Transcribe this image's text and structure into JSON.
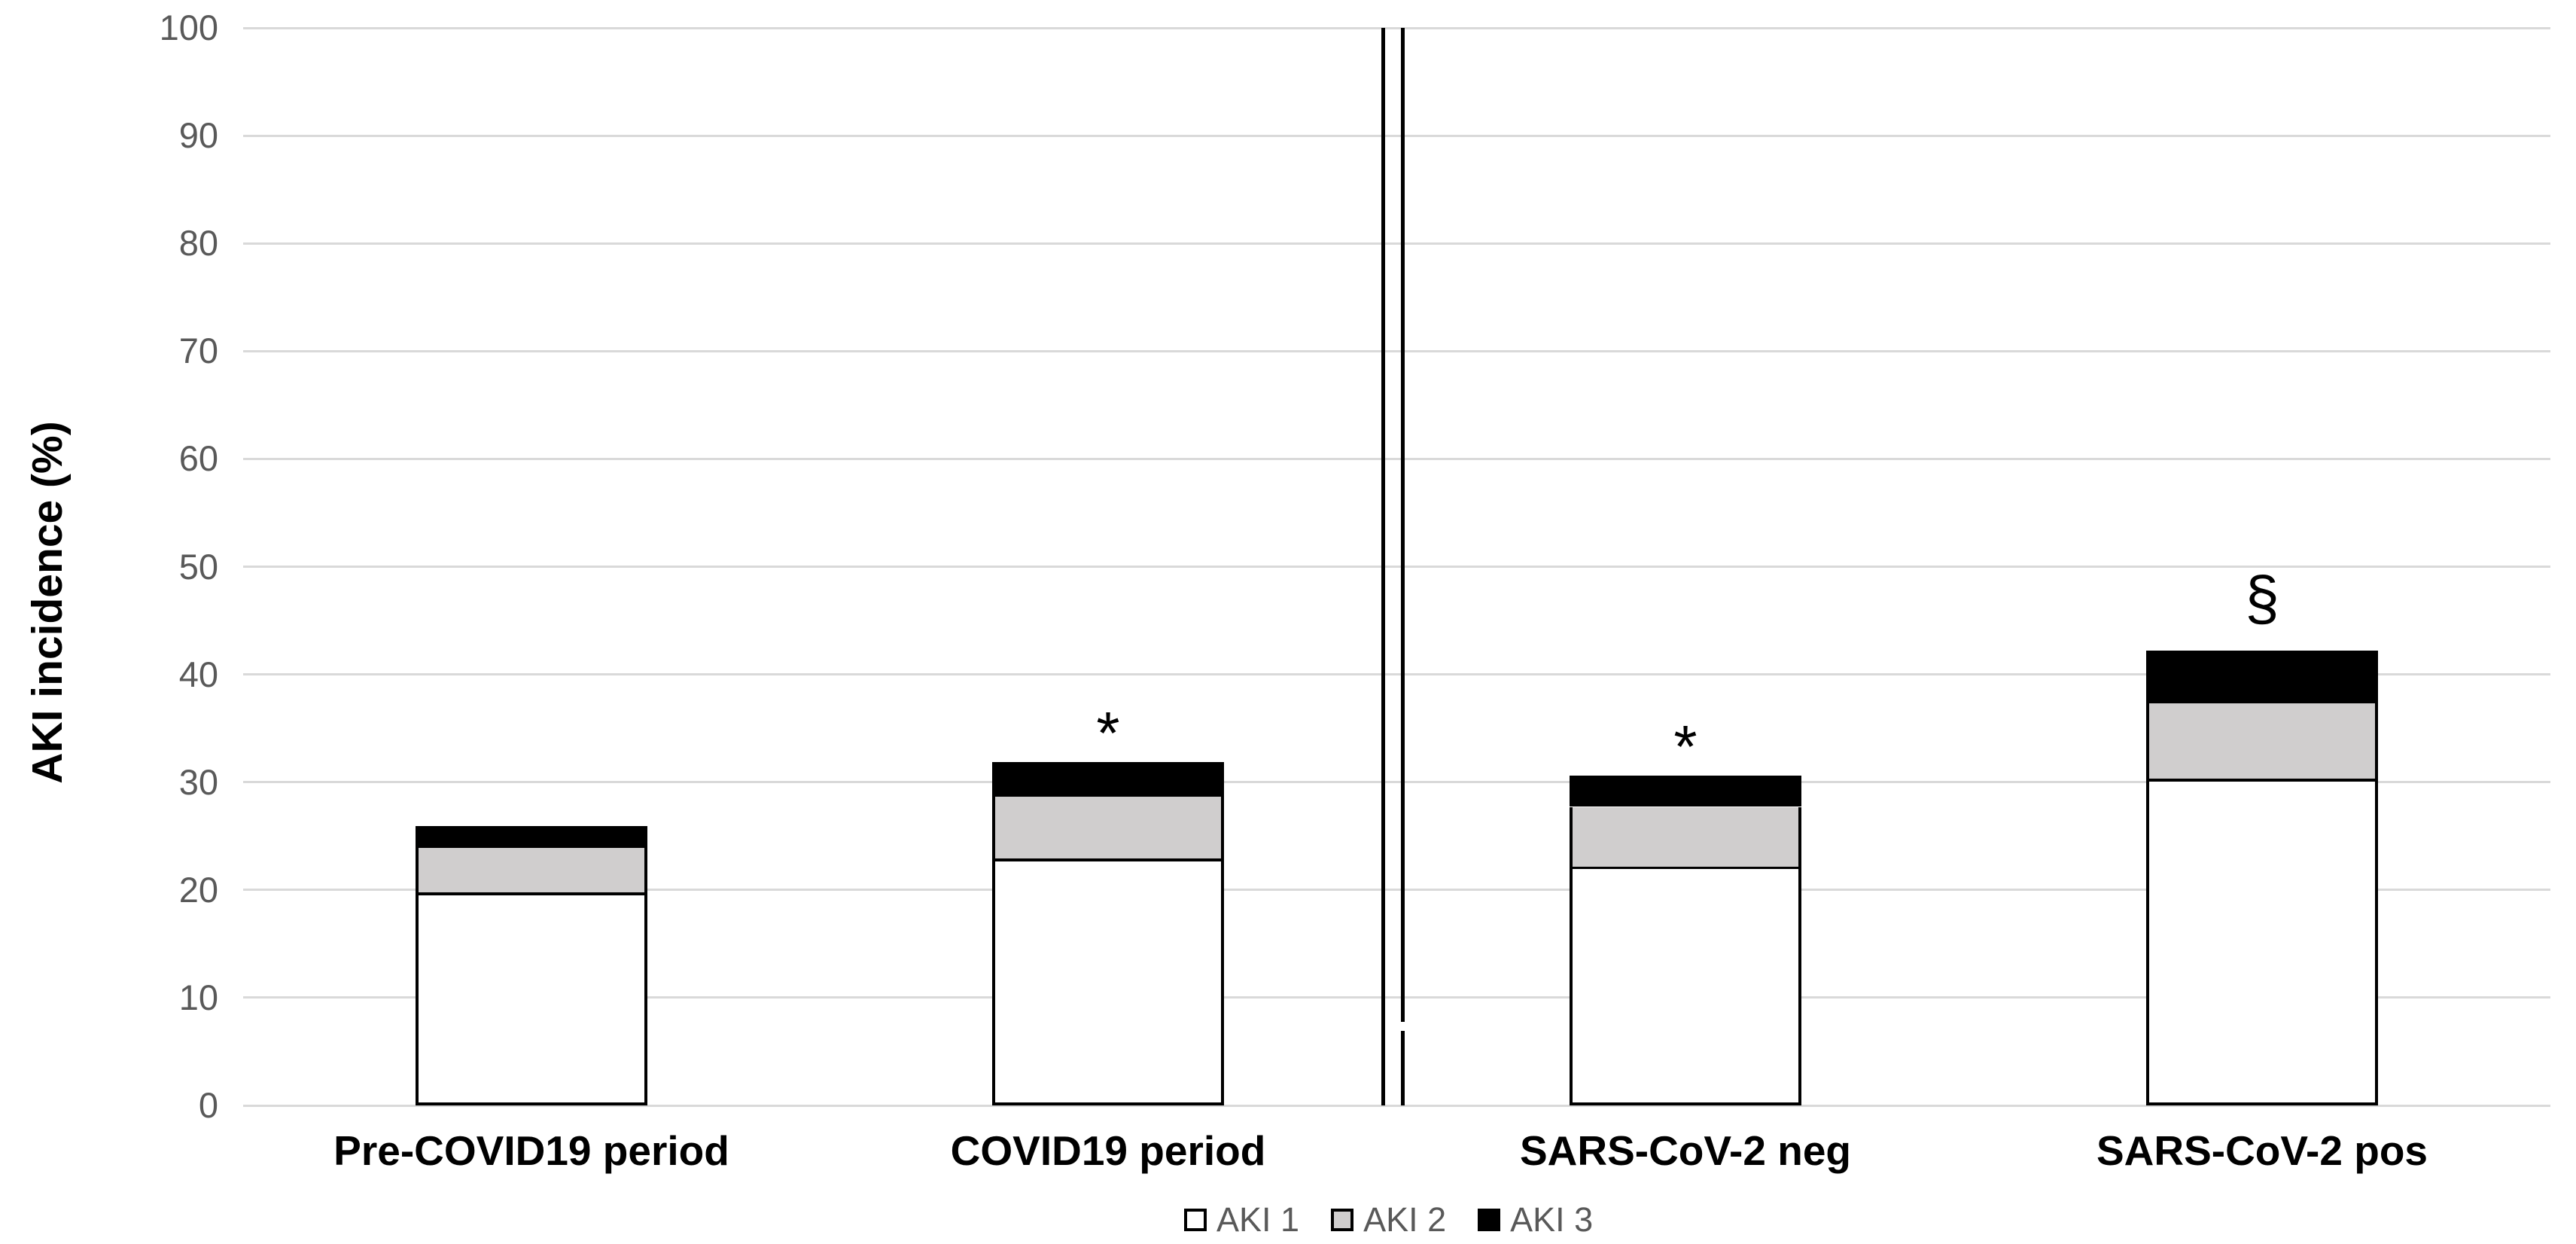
{
  "y_axis": {
    "title": "AKI incidence (%)",
    "min": 0,
    "max": 100,
    "step": 10,
    "tick_labels": [
      "0",
      "10",
      "20",
      "30",
      "40",
      "50",
      "60",
      "70",
      "80",
      "90",
      "100"
    ]
  },
  "legend": {
    "items": [
      {
        "label": "AKI 1",
        "fill": "#ffffff",
        "border": "#000000"
      },
      {
        "label": "AKI 2",
        "fill": "#d0cece",
        "border": "#000000"
      },
      {
        "label": "AKI 3",
        "fill": "#000000",
        "border": "#000000"
      }
    ]
  },
  "chart_data": {
    "type": "bar",
    "stacked": true,
    "title": "",
    "xlabel": "",
    "ylabel": "AKI incidence (%)",
    "ylim": [
      0,
      100
    ],
    "grid": true,
    "legend_position": "bottom",
    "categories": [
      "Pre-COVID19 period",
      "COVID19 period",
      "SARS-CoV-2 neg",
      "SARS-CoV-2 pos"
    ],
    "series": [
      {
        "name": "AKI 1",
        "values": [
          19.8,
          22.9,
          22.2,
          30.3
        ]
      },
      {
        "name": "AKI 2",
        "values": [
          4.1,
          5.8,
          5.5,
          7.0
        ]
      },
      {
        "name": "AKI 3",
        "values": [
          2.0,
          3.2,
          2.9,
          4.9
        ]
      }
    ],
    "totals": [
      25.9,
      31.9,
      30.6,
      42.2
    ],
    "annotations": [
      "",
      "*",
      "*",
      "§"
    ],
    "panel_divider": {
      "position": "between COVID19 period and SARS-CoV-2 neg",
      "style": "double vertical black line, right line broken near bottom"
    }
  },
  "colors": {
    "background": "#ffffff",
    "gridline": "#d9d9d9",
    "tick_text": "#595959",
    "legend_text": "#595959",
    "category_text": "#000000",
    "aki1_fill": "#ffffff",
    "aki2_fill": "#d0cece",
    "aki3_fill": "#000000",
    "bar_border": "#000000",
    "divider_line": "#000000"
  }
}
